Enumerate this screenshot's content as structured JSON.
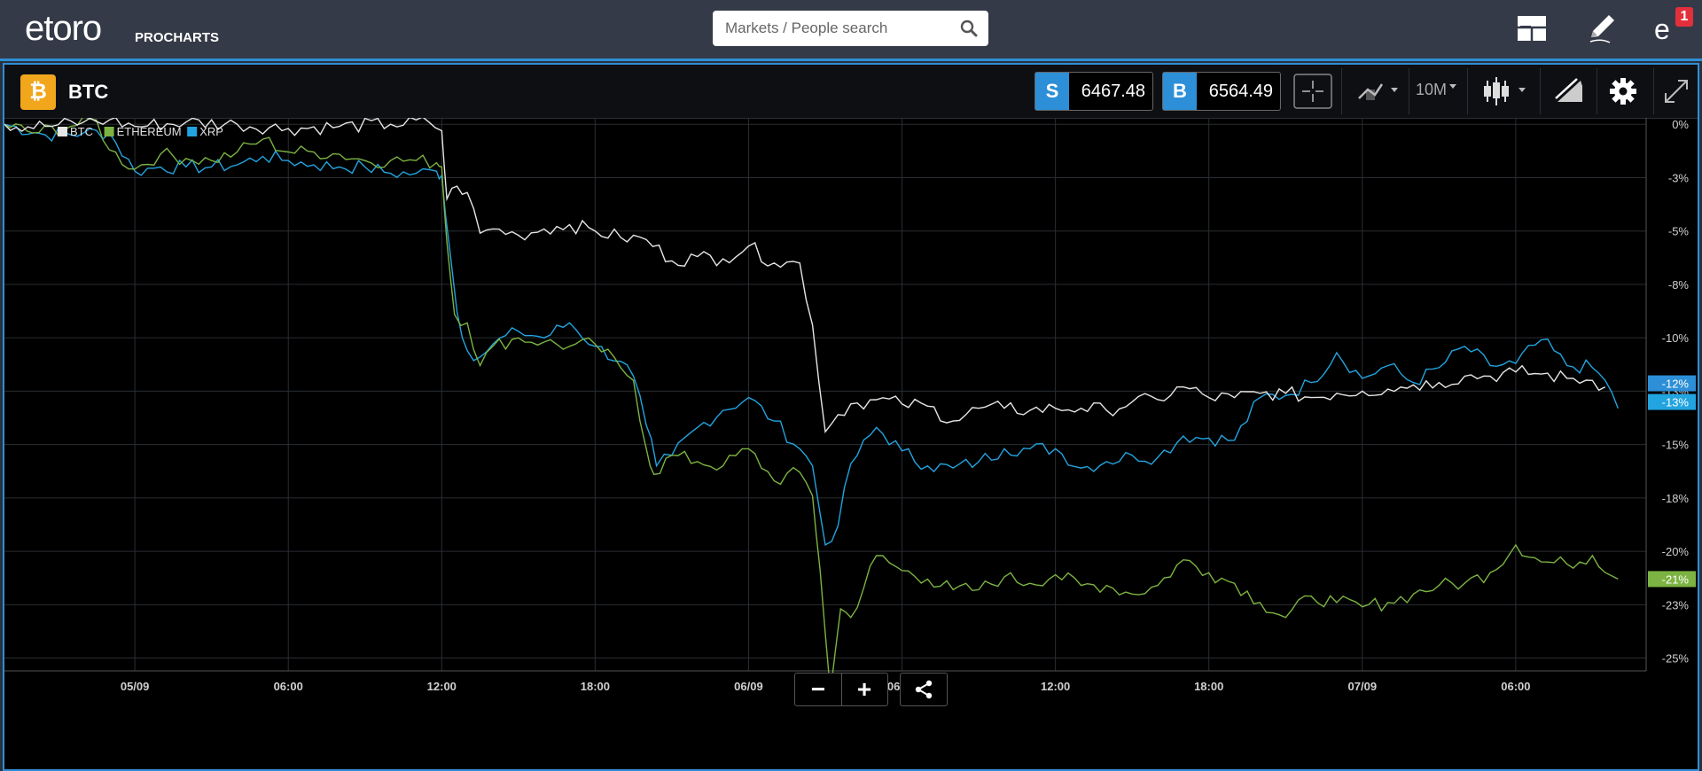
{
  "header": {
    "logo_text": "etoro",
    "logo_sub": "PROCHARTS",
    "search_placeholder": "Markets / People search",
    "notification_count": "1",
    "icons": [
      "layout-icon",
      "pencil-icon",
      "notifications-icon"
    ]
  },
  "instrument": {
    "symbol": "BTC",
    "icon": "bitcoin-icon",
    "icon_glyph": "₿",
    "icon_color": "#f1a61c",
    "sell_label": "S",
    "sell_price": "6467.48",
    "buy_label": "B",
    "buy_price": "6564.49"
  },
  "toolbar": {
    "timeframe": "10M",
    "icons": [
      "crosshair-icon",
      "compare-icon",
      "candlestick-icon",
      "drawing-icon",
      "gear-icon",
      "fullscreen-icon"
    ]
  },
  "zoom": {
    "minus": "−",
    "plus": "+"
  },
  "chart_data": {
    "type": "line",
    "title": "",
    "xlabel": "",
    "ylabel": "",
    "y_axis_position": "right",
    "grid": true,
    "legend_placement": "top-left",
    "x_ticks": [
      "05/09",
      "06:00",
      "12:00",
      "18:00",
      "06/09",
      "06:00",
      "12:00",
      "18:00",
      "07/09",
      "06:00"
    ],
    "x_tick_times": [
      0,
      6,
      12,
      18,
      24,
      30,
      36,
      42,
      48,
      54
    ],
    "x_range_hours": [
      -5.1,
      59.1
    ],
    "y_ticks": [
      "0%",
      "-3%",
      "-5%",
      "-8%",
      "-10%",
      "-13%",
      "-15%",
      "-18%",
      "-20%",
      "-23%",
      "-25%"
    ],
    "ylim": [
      -25.6,
      0.3
    ],
    "end_labels": [
      {
        "series": "BTC",
        "text": "-12%",
        "color": "#2d8fd7"
      },
      {
        "series": "XRP",
        "text": "-13%",
        "color": "#22a4e0"
      },
      {
        "series": "ETHEREUM",
        "text": "-21%",
        "color": "#7cb342"
      }
    ],
    "series": [
      {
        "name": "BTC",
        "color": "#e6e6e6",
        "points": [
          [
            -5.1,
            0
          ],
          [
            -3.5,
            -0.1
          ],
          [
            -2,
            0.1
          ],
          [
            -1,
            0.2
          ],
          [
            0,
            -0.1
          ],
          [
            2,
            0.1
          ],
          [
            4,
            0
          ],
          [
            6,
            -0.2
          ],
          [
            8,
            -0.1
          ],
          [
            10,
            0
          ],
          [
            11.5,
            0.1
          ],
          [
            12,
            -0.3
          ],
          [
            12.2,
            -3.5
          ],
          [
            12.6,
            -2.9
          ],
          [
            13,
            -3.2
          ],
          [
            13.5,
            -5.1
          ],
          [
            14,
            -4.9
          ],
          [
            15,
            -5.2
          ],
          [
            16,
            -4.9
          ],
          [
            17,
            -4.7
          ],
          [
            18,
            -5
          ],
          [
            19,
            -5.3
          ],
          [
            20,
            -5.4
          ],
          [
            21,
            -6.4
          ],
          [
            22,
            -6.2
          ],
          [
            23,
            -6.3
          ],
          [
            24,
            -5.7
          ],
          [
            25,
            -6.5
          ],
          [
            26,
            -6.5
          ],
          [
            26.5,
            -9.4
          ],
          [
            27,
            -14.4
          ],
          [
            27.5,
            -13.6
          ],
          [
            28,
            -13.1
          ],
          [
            29,
            -12.9
          ],
          [
            30,
            -13.1
          ],
          [
            31,
            -13.2
          ],
          [
            32,
            -13.9
          ],
          [
            33,
            -13.3
          ],
          [
            34,
            -13.3
          ],
          [
            35,
            -13.4
          ],
          [
            36,
            -13.3
          ],
          [
            37,
            -13.3
          ],
          [
            38,
            -13.4
          ],
          [
            39,
            -13
          ],
          [
            40,
            -12.9
          ],
          [
            41,
            -12.3
          ],
          [
            42,
            -12.8
          ],
          [
            43,
            -12.8
          ],
          [
            44,
            -12.6
          ],
          [
            45,
            -12.6
          ],
          [
            46,
            -12.8
          ],
          [
            47,
            -12.6
          ],
          [
            48,
            -12.5
          ],
          [
            49,
            -12.4
          ],
          [
            50,
            -12.2
          ],
          [
            51,
            -12.1
          ],
          [
            52,
            -11.8
          ],
          [
            53,
            -11.8
          ],
          [
            54,
            -11.6
          ],
          [
            55,
            -11.7
          ],
          [
            56,
            -11.9
          ],
          [
            57,
            -12
          ],
          [
            57.5,
            -12.3
          ]
        ]
      },
      {
        "name": "ETHEREUM",
        "color": "#7cb342",
        "points": [
          [
            -5.1,
            0
          ],
          [
            -4,
            -0.4
          ],
          [
            -2.5,
            -0.1
          ],
          [
            -1.5,
            0.2
          ],
          [
            -1,
            -1.2
          ],
          [
            0,
            -2.1
          ],
          [
            1,
            -1.4
          ],
          [
            2,
            -1.6
          ],
          [
            3,
            -1.7
          ],
          [
            4,
            -1.3
          ],
          [
            5,
            -0.7
          ],
          [
            6,
            -1.3
          ],
          [
            7,
            -1.3
          ],
          [
            8,
            -1.4
          ],
          [
            9,
            -1.7
          ],
          [
            10,
            -1.7
          ],
          [
            11,
            -1.7
          ],
          [
            11.8,
            -1.8
          ],
          [
            12,
            -2
          ],
          [
            12.2,
            -5.5
          ],
          [
            12.5,
            -8.9
          ],
          [
            13,
            -9.3
          ],
          [
            13.5,
            -11.3
          ],
          [
            14,
            -10.4
          ],
          [
            15,
            -10
          ],
          [
            16,
            -10.2
          ],
          [
            17,
            -10.4
          ],
          [
            18,
            -10.3
          ],
          [
            19,
            -11.4
          ],
          [
            19.5,
            -12
          ],
          [
            20,
            -15.2
          ],
          [
            20.3,
            -16.4
          ],
          [
            21,
            -15.5
          ],
          [
            22,
            -15.8
          ],
          [
            23,
            -16
          ],
          [
            24,
            -15.2
          ],
          [
            25,
            -16.7
          ],
          [
            26,
            -16.3
          ],
          [
            26.5,
            -17.4
          ],
          [
            26.8,
            -20.9
          ],
          [
            27.2,
            -26.6
          ],
          [
            27.6,
            -22.7
          ],
          [
            28,
            -23.1
          ],
          [
            29,
            -20.2
          ],
          [
            30,
            -20.9
          ],
          [
            31,
            -21.3
          ],
          [
            32,
            -21.8
          ],
          [
            33,
            -21.8
          ],
          [
            34,
            -21.2
          ],
          [
            35,
            -21.5
          ],
          [
            36,
            -21.1
          ],
          [
            37,
            -21.6
          ],
          [
            38,
            -21.6
          ],
          [
            39,
            -22
          ],
          [
            40,
            -21.6
          ],
          [
            41,
            -20.4
          ],
          [
            42,
            -21
          ],
          [
            43,
            -21.5
          ],
          [
            44,
            -22.4
          ],
          [
            45,
            -23.1
          ],
          [
            46,
            -22.1
          ],
          [
            47,
            -22.4
          ],
          [
            48,
            -22.6
          ],
          [
            49,
            -22.4
          ],
          [
            50,
            -22
          ],
          [
            51,
            -21.6
          ],
          [
            52,
            -21.5
          ],
          [
            53,
            -21
          ],
          [
            54,
            -19.7
          ],
          [
            55,
            -20.5
          ],
          [
            56,
            -20.6
          ],
          [
            57,
            -20.2
          ],
          [
            58,
            -21.3
          ]
        ]
      },
      {
        "name": "XRP",
        "color": "#22a4e0",
        "points": [
          [
            -5.1,
            0
          ],
          [
            -3.5,
            -0.5
          ],
          [
            -2,
            -0.4
          ],
          [
            -1,
            -0.4
          ],
          [
            0,
            -2.2
          ],
          [
            1,
            -2
          ],
          [
            2,
            -2
          ],
          [
            3,
            -2
          ],
          [
            4,
            -1.9
          ],
          [
            5,
            -1.5
          ],
          [
            6,
            -1.7
          ],
          [
            7,
            -1.9
          ],
          [
            8,
            -2
          ],
          [
            9,
            -2
          ],
          [
            10,
            -2.3
          ],
          [
            11,
            -2.3
          ],
          [
            11.8,
            -2.2
          ],
          [
            12,
            -2.4
          ],
          [
            12.3,
            -5.7
          ],
          [
            12.6,
            -8.8
          ],
          [
            13,
            -10.6
          ],
          [
            13.5,
            -10.9
          ],
          [
            14,
            -10.3
          ],
          [
            15,
            -9.7
          ],
          [
            16,
            -10
          ],
          [
            17,
            -9.3
          ],
          [
            18,
            -10.4
          ],
          [
            19,
            -11.1
          ],
          [
            19.5,
            -11.8
          ],
          [
            20,
            -14.1
          ],
          [
            20.4,
            -16
          ],
          [
            21,
            -15.5
          ],
          [
            22,
            -14.2
          ],
          [
            23,
            -13.4
          ],
          [
            24,
            -12.8
          ],
          [
            25,
            -13.9
          ],
          [
            26,
            -15.2
          ],
          [
            26.5,
            -16
          ],
          [
            27,
            -19.7
          ],
          [
            27.5,
            -18.8
          ],
          [
            28,
            -15.9
          ],
          [
            29,
            -14.2
          ],
          [
            30,
            -15.3
          ],
          [
            31,
            -16
          ],
          [
            32,
            -16.1
          ],
          [
            33,
            -15.8
          ],
          [
            34,
            -15.2
          ],
          [
            35,
            -15.2
          ],
          [
            36,
            -15.2
          ],
          [
            37,
            -16.1
          ],
          [
            38,
            -15.8
          ],
          [
            39,
            -15.5
          ],
          [
            40,
            -15.6
          ],
          [
            41,
            -14.6
          ],
          [
            42,
            -14.7
          ],
          [
            43,
            -14.8
          ],
          [
            44,
            -12.8
          ],
          [
            45,
            -12.7
          ],
          [
            46,
            -12.1
          ],
          [
            47,
            -10.7
          ],
          [
            48,
            -11.9
          ],
          [
            49,
            -11.3
          ],
          [
            50,
            -12.1
          ],
          [
            51,
            -11.4
          ],
          [
            52,
            -10.4
          ],
          [
            53,
            -11.3
          ],
          [
            54,
            -11.2
          ],
          [
            55,
            -10.1
          ],
          [
            56,
            -11.3
          ],
          [
            57,
            -11.4
          ],
          [
            57.5,
            -12
          ],
          [
            58,
            -13.3
          ]
        ]
      }
    ]
  }
}
